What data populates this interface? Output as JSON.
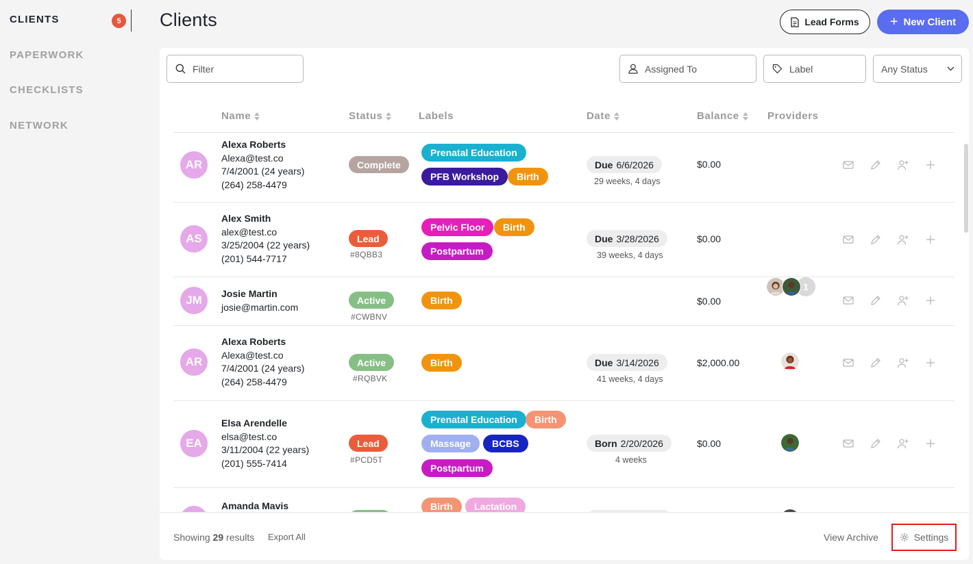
{
  "sidebar": {
    "items": [
      {
        "label": "CLIENTS",
        "badge": "5",
        "active": true
      },
      {
        "label": "PAPERWORK"
      },
      {
        "label": "CHECKLISTS"
      },
      {
        "label": "NETWORK"
      }
    ]
  },
  "header": {
    "title": "Clients",
    "lead_forms_label": "Lead Forms",
    "new_client_label": "New Client"
  },
  "filters": {
    "filter_placeholder": "Filter",
    "assigned_to_placeholder": "Assigned To",
    "label_placeholder": "Label",
    "status_value": "Any Status"
  },
  "table": {
    "columns": [
      "Name",
      "Status",
      "Labels",
      "Date",
      "Balance",
      "Providers"
    ],
    "rows": [
      {
        "initials": "AR",
        "name": "Alexa Roberts",
        "email": "Alexa@test.co",
        "dob": "7/4/2001 (24 years)",
        "phone": "(264) 258-4479",
        "status": "Complete",
        "status_color": "#b5a4a0",
        "code": "",
        "labels": [
          {
            "text": "Prenatal Education",
            "color": "#1ab0cf"
          },
          {
            "text": "PFB Workshop",
            "color": "#3a1a9e"
          },
          {
            "text": "Birth",
            "color": "#f0940f"
          }
        ],
        "date_kind": "Due",
        "date": "6/6/2026",
        "date_sub": "29 weeks, 4 days",
        "balance": "$0.00",
        "providers": []
      },
      {
        "initials": "AS",
        "name": "Alex Smith",
        "email": "alex@test.co",
        "dob": "3/25/2004 (22 years)",
        "phone": "(201) 544-7717",
        "status": "Lead",
        "status_color": "#ec5c3a",
        "code": "#8QBB3",
        "labels": [
          {
            "text": "Pelvic Floor",
            "color": "#e61fb8"
          },
          {
            "text": "Birth",
            "color": "#f0940f"
          },
          {
            "text": "Postpartum",
            "color": "#c71cc4"
          }
        ],
        "date_kind": "Due",
        "date": "3/28/2026",
        "date_sub": "39 weeks, 4 days",
        "balance": "$0.00",
        "providers": [
          "photo-woman",
          "photo-man"
        ],
        "provider_extra": "1"
      },
      {
        "initials": "JM",
        "name": "Josie Martin",
        "email": "josie@martin.com",
        "dob": "",
        "phone": "",
        "status": "Active",
        "status_color": "#86bf86",
        "code": "#CWBNV",
        "labels": [
          {
            "text": "Birth",
            "color": "#f0940f"
          }
        ],
        "date_kind": "",
        "date": "",
        "date_sub": "",
        "balance": "$0.00",
        "providers": []
      },
      {
        "initials": "AR",
        "name": "Alexa Roberts",
        "email": "Alexa@test.co",
        "dob": "7/4/2001 (24 years)",
        "phone": "(264) 258-4479",
        "status": "Active",
        "status_color": "#86bf86",
        "code": "#RQBVK",
        "labels": [
          {
            "text": "Birth",
            "color": "#f0940f"
          }
        ],
        "date_kind": "Due",
        "date": "3/14/2026",
        "date_sub": "41 weeks, 4 days",
        "balance": "$2,000.00",
        "providers": [
          "photo-red"
        ]
      },
      {
        "initials": "EA",
        "name": "Elsa Arendelle",
        "email": "elsa@test.co",
        "dob": "3/11/2004 (22 years)",
        "phone": "(201) 555-7414",
        "status": "Lead",
        "status_color": "#ec5c3a",
        "code": "#PCD5T",
        "labels": [
          {
            "text": "Prenatal Education",
            "color": "#1ab0cf"
          },
          {
            "text": "Birth",
            "color": "#f59473"
          },
          {
            "text": "Massage",
            "color": "#9fb0f0"
          },
          {
            "text": "BCBS",
            "color": "#1625c2"
          },
          {
            "text": "Postpartum",
            "color": "#c71cc4"
          }
        ],
        "date_kind": "Born",
        "date": "2/20/2026",
        "date_sub": "4 weeks",
        "balance": "$0.00",
        "providers": [
          "photo-green"
        ]
      },
      {
        "initials": "",
        "name": "Amanda Mavis",
        "email": "",
        "dob": "",
        "phone": "",
        "status": "",
        "status_color": "#86bf86",
        "code": "",
        "labels": [
          {
            "text": "Birth",
            "color": "#f59473"
          },
          {
            "text": "Lactation",
            "color": "#f0a8e0"
          }
        ],
        "date_kind": "",
        "date": "",
        "date_sub": "",
        "balance": "",
        "providers": []
      }
    ]
  },
  "footer": {
    "showing_prefix": "Showing ",
    "results_count": "29",
    "showing_suffix": " results",
    "export_label": "Export All",
    "view_archive_label": "View Archive",
    "settings_label": "Settings"
  },
  "colors": {
    "accent": "#5a6cf0",
    "badge": "#e8563c",
    "avatar": "#e5a8e8",
    "highlight": "#e21b1b"
  }
}
